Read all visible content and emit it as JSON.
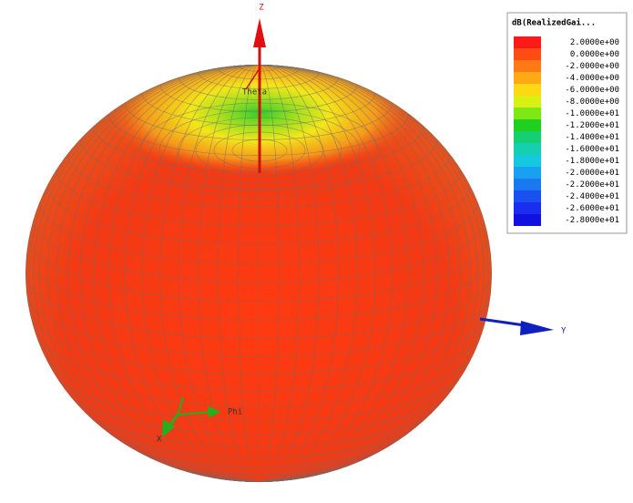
{
  "legend": {
    "title": "dB(RealizedGai...",
    "labels": [
      "2.0000e+00",
      "0.0000e+00",
      "-2.0000e+00",
      "-4.0000e+00",
      "-6.0000e+00",
      "-8.0000e+00",
      "-1.0000e+01",
      "-1.2000e+01",
      "-1.4000e+01",
      "-1.6000e+01",
      "-1.8000e+01",
      "-2.0000e+01",
      "-2.2000e+01",
      "-2.4000e+01",
      "-2.6000e+01",
      "-2.8000e+01"
    ]
  },
  "axes": {
    "z": "Z",
    "y": "Y",
    "x": "X",
    "theta": "Theta",
    "phi": "Phi"
  }
}
